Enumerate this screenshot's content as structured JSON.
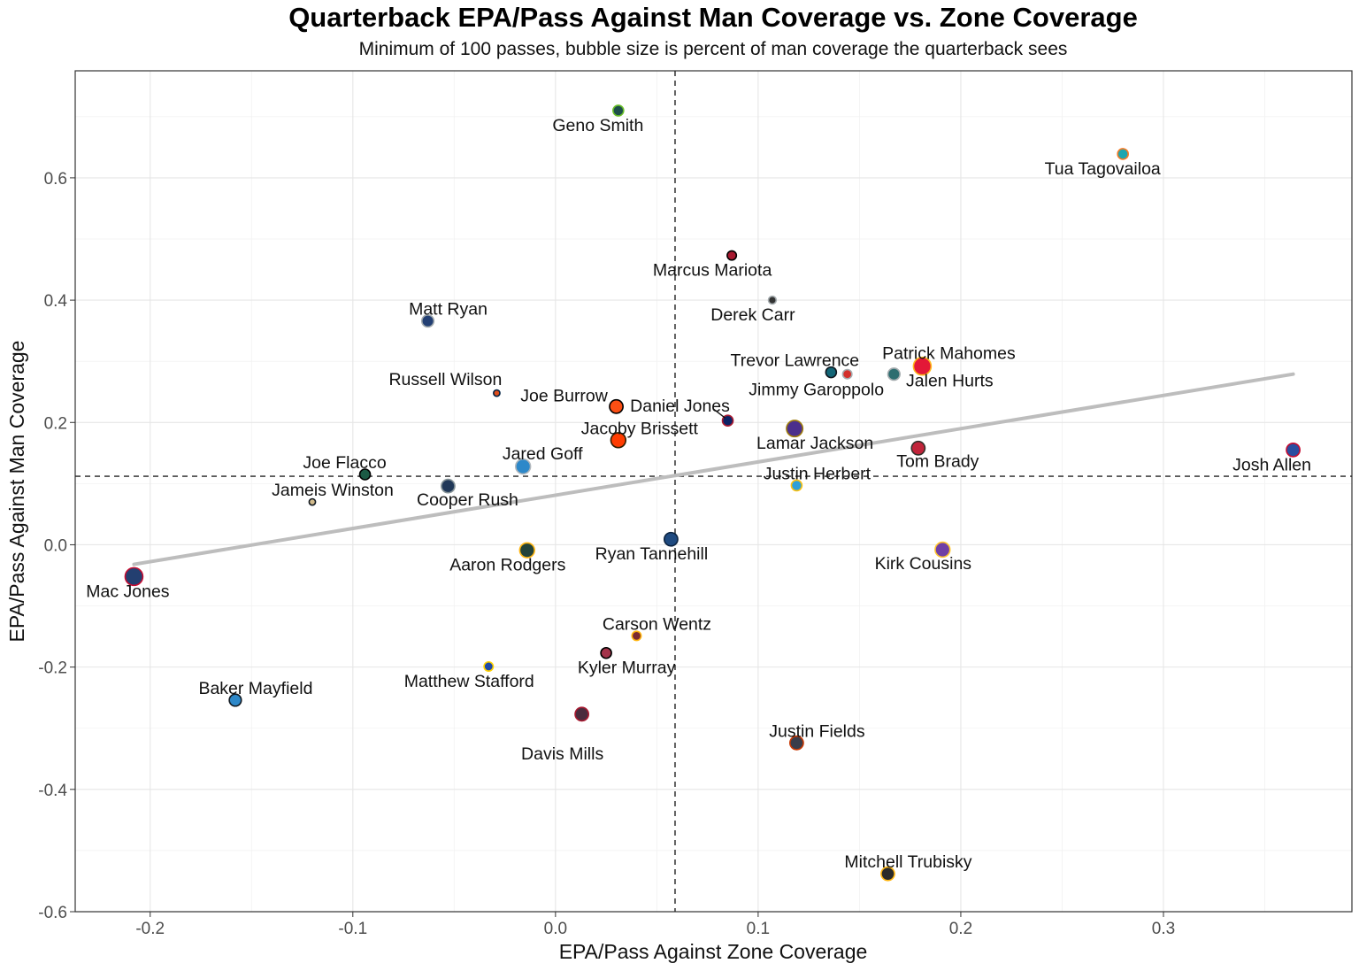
{
  "chart_data": {
    "type": "scatter",
    "title": "Quarterback EPA/Pass Against Man Coverage vs. Zone Coverage",
    "subtitle": "Minimum of 100 passes, bubble size is percent of man coverage the quarterback sees",
    "xlabel": "EPA/Pass Against Zone Coverage",
    "ylabel": "EPA/Pass Against Man Coverage",
    "xlim": [
      -0.237,
      0.393
    ],
    "ylim": [
      -0.6,
      0.775
    ],
    "xticks": [
      -0.2,
      -0.1,
      0.0,
      0.1,
      0.2,
      0.3
    ],
    "xtick_labels": [
      "-0.2",
      "-0.1",
      "0.0",
      "0.1",
      "0.2",
      "0.3"
    ],
    "yticks": [
      -0.6,
      -0.4,
      -0.2,
      0.0,
      0.2,
      0.4,
      0.6
    ],
    "ytick_labels": [
      "-0.6",
      "-0.4",
      "-0.2",
      "0.0",
      "0.2",
      "0.4",
      "0.6"
    ],
    "grid": true,
    "reference_lines": {
      "x_mean": 0.059,
      "y_mean": 0.112
    },
    "trend_line": {
      "x_start": -0.208,
      "y_start": -0.032,
      "x_end": 0.364,
      "y_end": 0.279,
      "color": "#bdbdbd"
    },
    "points": [
      {
        "name": "Geno Smith",
        "x": 0.031,
        "y": 0.71,
        "size": 5,
        "color": "#1d4f4a",
        "stroke": "#69be28"
      },
      {
        "name": "Tua Tagovailoa",
        "x": 0.28,
        "y": 0.639,
        "size": 5,
        "color": "#1ba6b0",
        "stroke": "#f47a24"
      },
      {
        "name": "Marcus Mariota",
        "x": 0.087,
        "y": 0.473,
        "size": 4,
        "color": "#a71930",
        "stroke": "#000000"
      },
      {
        "name": "Derek Carr",
        "x": 0.107,
        "y": 0.4,
        "size": 3,
        "color": "#333333",
        "stroke": "#a5acaf"
      },
      {
        "name": "Matt Ryan",
        "x": -0.063,
        "y": 0.366,
        "size": 6,
        "color": "#233f73",
        "stroke": "#a2aaad"
      },
      {
        "name": "Russell Wilson",
        "x": -0.029,
        "y": 0.248,
        "size": 2,
        "color": "#e04e1b",
        "stroke": "#002244"
      },
      {
        "name": "Trevor Lawrence",
        "x": 0.136,
        "y": 0.282,
        "size": 5,
        "color": "#136677",
        "stroke": "#101820"
      },
      {
        "name": "Jimmy Garoppolo",
        "x": 0.144,
        "y": 0.279,
        "size": 4,
        "color": "#d3302b",
        "stroke": "#a5acaf"
      },
      {
        "name": "Patrick Mahomes",
        "x": 0.181,
        "y": 0.292,
        "size": 10,
        "color": "#e31837",
        "stroke": "#ffb81c"
      },
      {
        "name": "Jalen Hurts",
        "x": 0.167,
        "y": 0.279,
        "size": 6,
        "color": "#2d6d70",
        "stroke": "#a5acaf"
      },
      {
        "name": "Joe Burrow",
        "x": 0.03,
        "y": 0.226,
        "size": 7,
        "color": "#fb4f14",
        "stroke": "#000000"
      },
      {
        "name": "Daniel Jones",
        "x": 0.085,
        "y": 0.203,
        "size": 5,
        "color": "#0b2265",
        "stroke": "#a71930"
      },
      {
        "name": "Jacoby Brissett",
        "x": 0.031,
        "y": 0.171,
        "size": 8,
        "color": "#ff3c00",
        "stroke": "#311d00"
      },
      {
        "name": "Lamar Jackson",
        "x": 0.118,
        "y": 0.19,
        "size": 9,
        "color": "#4b2f8c",
        "stroke": "#9e7c0c"
      },
      {
        "name": "Tom Brady",
        "x": 0.179,
        "y": 0.158,
        "size": 7,
        "color": "#c1243a",
        "stroke": "#34302b"
      },
      {
        "name": "Josh Allen",
        "x": 0.364,
        "y": 0.155,
        "size": 7,
        "color": "#2a4ea0",
        "stroke": "#c60c30"
      },
      {
        "name": "Jared Goff",
        "x": -0.016,
        "y": 0.128,
        "size": 8,
        "color": "#2d88c9",
        "stroke": "#b0b7bc"
      },
      {
        "name": "Joe Flacco",
        "x": -0.094,
        "y": 0.115,
        "size": 5,
        "color": "#1b5a45",
        "stroke": "#000000"
      },
      {
        "name": "Justin Herbert",
        "x": 0.119,
        "y": 0.097,
        "size": 5,
        "color": "#2e9fd9",
        "stroke": "#ffc20e"
      },
      {
        "name": "Cooper Rush",
        "x": -0.053,
        "y": 0.096,
        "size": 7,
        "color": "#203858",
        "stroke": "#869397"
      },
      {
        "name": "Jameis Winston",
        "x": -0.12,
        "y": 0.07,
        "size": 2,
        "color": "#d3bc8d",
        "stroke": "#101820"
      },
      {
        "name": "Ryan Tannehill",
        "x": 0.057,
        "y": 0.009,
        "size": 7,
        "color": "#1f4a80",
        "stroke": "#0c2340"
      },
      {
        "name": "Aaron Rodgers",
        "x": -0.014,
        "y": -0.009,
        "size": 8,
        "color": "#23433a",
        "stroke": "#ffb612"
      },
      {
        "name": "Kirk Cousins",
        "x": 0.191,
        "y": -0.008,
        "size": 8,
        "color": "#6f3fa5",
        "stroke": "#ffc62f"
      },
      {
        "name": "Mac Jones",
        "x": -0.208,
        "y": -0.052,
        "size": 10,
        "color": "#233f70",
        "stroke": "#c60c30"
      },
      {
        "name": "Carson Wentz",
        "x": 0.04,
        "y": -0.149,
        "size": 4,
        "color": "#7a2a32",
        "stroke": "#ffb612"
      },
      {
        "name": "Kyler Murray",
        "x": 0.025,
        "y": -0.177,
        "size": 5,
        "color": "#a3334a",
        "stroke": "#000000"
      },
      {
        "name": "Matthew Stafford",
        "x": -0.033,
        "y": -0.199,
        "size": 4,
        "color": "#1f4aa8",
        "stroke": "#ffd100"
      },
      {
        "name": "Baker Mayfield",
        "x": -0.158,
        "y": -0.254,
        "size": 6,
        "color": "#2d88c9",
        "stroke": "#101820"
      },
      {
        "name": "Davis Mills",
        "x": 0.013,
        "y": -0.277,
        "size": 7,
        "color": "#4a2b3d",
        "stroke": "#a71930"
      },
      {
        "name": "Justin Fields",
        "x": 0.119,
        "y": -0.324,
        "size": 7,
        "color": "#3a3d4a",
        "stroke": "#c83803"
      },
      {
        "name": "Mitchell Trubisky",
        "x": 0.164,
        "y": -0.538,
        "size": 7,
        "color": "#2a2a2a",
        "stroke": "#ffb612"
      }
    ]
  }
}
